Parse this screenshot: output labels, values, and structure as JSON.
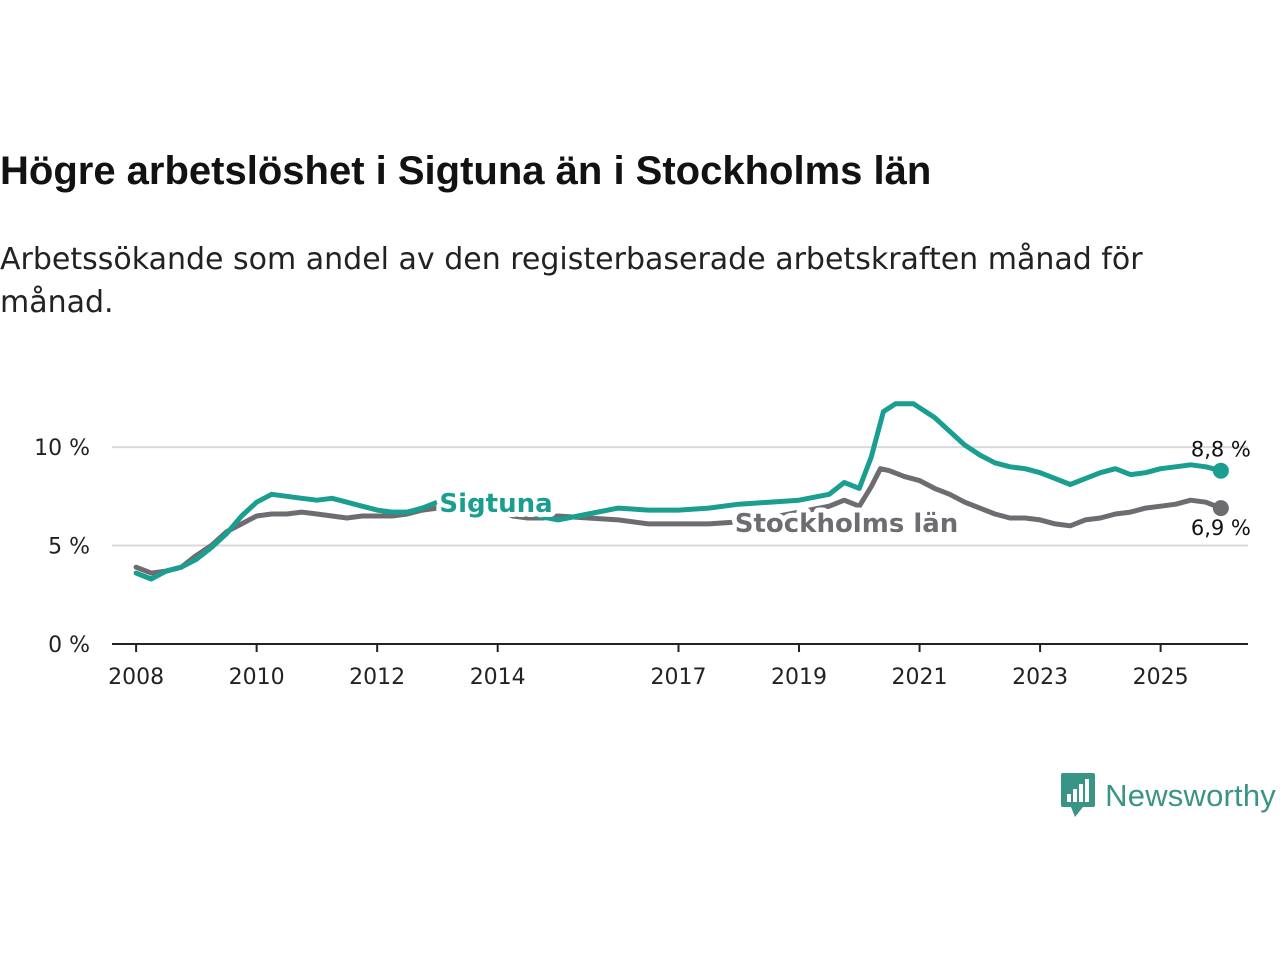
{
  "title": "Högre arbetslöshet i Sigtuna än i Stockholms län",
  "subtitle": "Arbetssökande som andel av den registerbaserade arbetskraften månad för månad.",
  "brand": {
    "name": "Newsworthy",
    "icon": "newsworthy-logo-icon",
    "color": "#3a9486"
  },
  "chart_data": {
    "type": "line",
    "title": "Högre arbetslöshet i Sigtuna än i Stockholms län",
    "xlabel": "",
    "ylabel": "",
    "x_ticks": [
      "2008",
      "2010",
      "2012",
      "2014",
      "2017",
      "2019",
      "2021",
      "2023",
      "2025"
    ],
    "y_ticks": [
      "0 %",
      "5 %",
      "10 %"
    ],
    "y_tick_values": [
      0,
      5,
      10
    ],
    "xlim": [
      2007.6,
      2026.45
    ],
    "ylim": [
      0,
      13
    ],
    "grid": true,
    "series": [
      {
        "name": "Stockholms län",
        "color": "#6e6c71",
        "end_label": "6,9 %",
        "points": [
          [
            2008.0,
            3.9
          ],
          [
            2008.25,
            3.6
          ],
          [
            2008.5,
            3.7
          ],
          [
            2008.75,
            3.9
          ],
          [
            2009.0,
            4.5
          ],
          [
            2009.25,
            5.0
          ],
          [
            2009.5,
            5.7
          ],
          [
            2009.75,
            6.1
          ],
          [
            2010.0,
            6.5
          ],
          [
            2010.25,
            6.6
          ],
          [
            2010.5,
            6.6
          ],
          [
            2010.75,
            6.7
          ],
          [
            2011.0,
            6.6
          ],
          [
            2011.25,
            6.5
          ],
          [
            2011.5,
            6.4
          ],
          [
            2011.75,
            6.5
          ],
          [
            2012.0,
            6.5
          ],
          [
            2012.25,
            6.5
          ],
          [
            2012.5,
            6.6
          ],
          [
            2012.75,
            6.8
          ],
          [
            2013.0,
            6.9
          ],
          [
            2013.5,
            6.9
          ],
          [
            2014.0,
            6.8
          ],
          [
            2014.25,
            6.5
          ],
          [
            2014.5,
            6.4
          ],
          [
            2014.75,
            6.4
          ],
          [
            2015.0,
            6.5
          ],
          [
            2015.5,
            6.4
          ],
          [
            2016.0,
            6.3
          ],
          [
            2016.5,
            6.1
          ],
          [
            2017.0,
            6.1
          ],
          [
            2017.5,
            6.1
          ],
          [
            2018.0,
            6.2
          ],
          [
            2018.5,
            6.4
          ],
          [
            2019.0,
            6.7
          ],
          [
            2019.5,
            7.0
          ],
          [
            2019.75,
            7.3
          ],
          [
            2020.0,
            7.0
          ],
          [
            2020.2,
            8.0
          ],
          [
            2020.35,
            8.9
          ],
          [
            2020.5,
            8.8
          ],
          [
            2020.75,
            8.5
          ],
          [
            2021.0,
            8.3
          ],
          [
            2021.25,
            7.9
          ],
          [
            2021.5,
            7.6
          ],
          [
            2021.75,
            7.2
          ],
          [
            2022.0,
            6.9
          ],
          [
            2022.25,
            6.6
          ],
          [
            2022.5,
            6.4
          ],
          [
            2022.75,
            6.4
          ],
          [
            2023.0,
            6.3
          ],
          [
            2023.25,
            6.1
          ],
          [
            2023.5,
            6.0
          ],
          [
            2023.75,
            6.3
          ],
          [
            2024.0,
            6.4
          ],
          [
            2024.25,
            6.6
          ],
          [
            2024.5,
            6.7
          ],
          [
            2024.75,
            6.9
          ],
          [
            2025.0,
            7.0
          ],
          [
            2025.25,
            7.1
          ],
          [
            2025.5,
            7.3
          ],
          [
            2025.75,
            7.2
          ],
          [
            2026.0,
            6.9
          ]
        ]
      },
      {
        "name": "Sigtuna",
        "color": "#1a9e8f",
        "end_label": "8,8 %",
        "points": [
          [
            2008.0,
            3.6
          ],
          [
            2008.25,
            3.3
          ],
          [
            2008.5,
            3.7
          ],
          [
            2008.75,
            3.9
          ],
          [
            2009.0,
            4.3
          ],
          [
            2009.25,
            4.9
          ],
          [
            2009.5,
            5.6
          ],
          [
            2009.75,
            6.5
          ],
          [
            2010.0,
            7.2
          ],
          [
            2010.25,
            7.6
          ],
          [
            2010.5,
            7.5
          ],
          [
            2010.75,
            7.4
          ],
          [
            2011.0,
            7.3
          ],
          [
            2011.25,
            7.4
          ],
          [
            2011.5,
            7.2
          ],
          [
            2011.75,
            7.0
          ],
          [
            2012.0,
            6.8
          ],
          [
            2012.25,
            6.7
          ],
          [
            2012.5,
            6.7
          ],
          [
            2012.75,
            6.9
          ],
          [
            2013.0,
            7.2
          ],
          [
            2013.5,
            7.1
          ],
          [
            2014.0,
            6.8
          ],
          [
            2014.5,
            6.6
          ],
          [
            2015.0,
            6.3
          ],
          [
            2015.5,
            6.6
          ],
          [
            2016.0,
            6.9
          ],
          [
            2016.5,
            6.8
          ],
          [
            2017.0,
            6.8
          ],
          [
            2017.5,
            6.9
          ],
          [
            2018.0,
            7.1
          ],
          [
            2018.5,
            7.2
          ],
          [
            2019.0,
            7.3
          ],
          [
            2019.5,
            7.6
          ],
          [
            2019.75,
            8.2
          ],
          [
            2020.0,
            7.9
          ],
          [
            2020.2,
            9.5
          ],
          [
            2020.4,
            11.8
          ],
          [
            2020.6,
            12.2
          ],
          [
            2020.9,
            12.2
          ],
          [
            2021.25,
            11.5
          ],
          [
            2021.5,
            10.8
          ],
          [
            2021.75,
            10.1
          ],
          [
            2022.0,
            9.6
          ],
          [
            2022.25,
            9.2
          ],
          [
            2022.5,
            9.0
          ],
          [
            2022.75,
            8.9
          ],
          [
            2023.0,
            8.7
          ],
          [
            2023.25,
            8.4
          ],
          [
            2023.5,
            8.1
          ],
          [
            2023.75,
            8.4
          ],
          [
            2024.0,
            8.7
          ],
          [
            2024.25,
            8.9
          ],
          [
            2024.5,
            8.6
          ],
          [
            2024.75,
            8.7
          ],
          [
            2025.0,
            8.9
          ],
          [
            2025.25,
            9.0
          ],
          [
            2025.5,
            9.1
          ],
          [
            2025.75,
            9.0
          ],
          [
            2026.0,
            8.8
          ]
        ]
      }
    ],
    "annotations": [
      {
        "series": "Sigtuna",
        "text": "Sigtuna",
        "at_x": 2013.0
      },
      {
        "series": "Stockholms län",
        "text": "Stockholms län",
        "at_x": 2017.9
      }
    ]
  }
}
